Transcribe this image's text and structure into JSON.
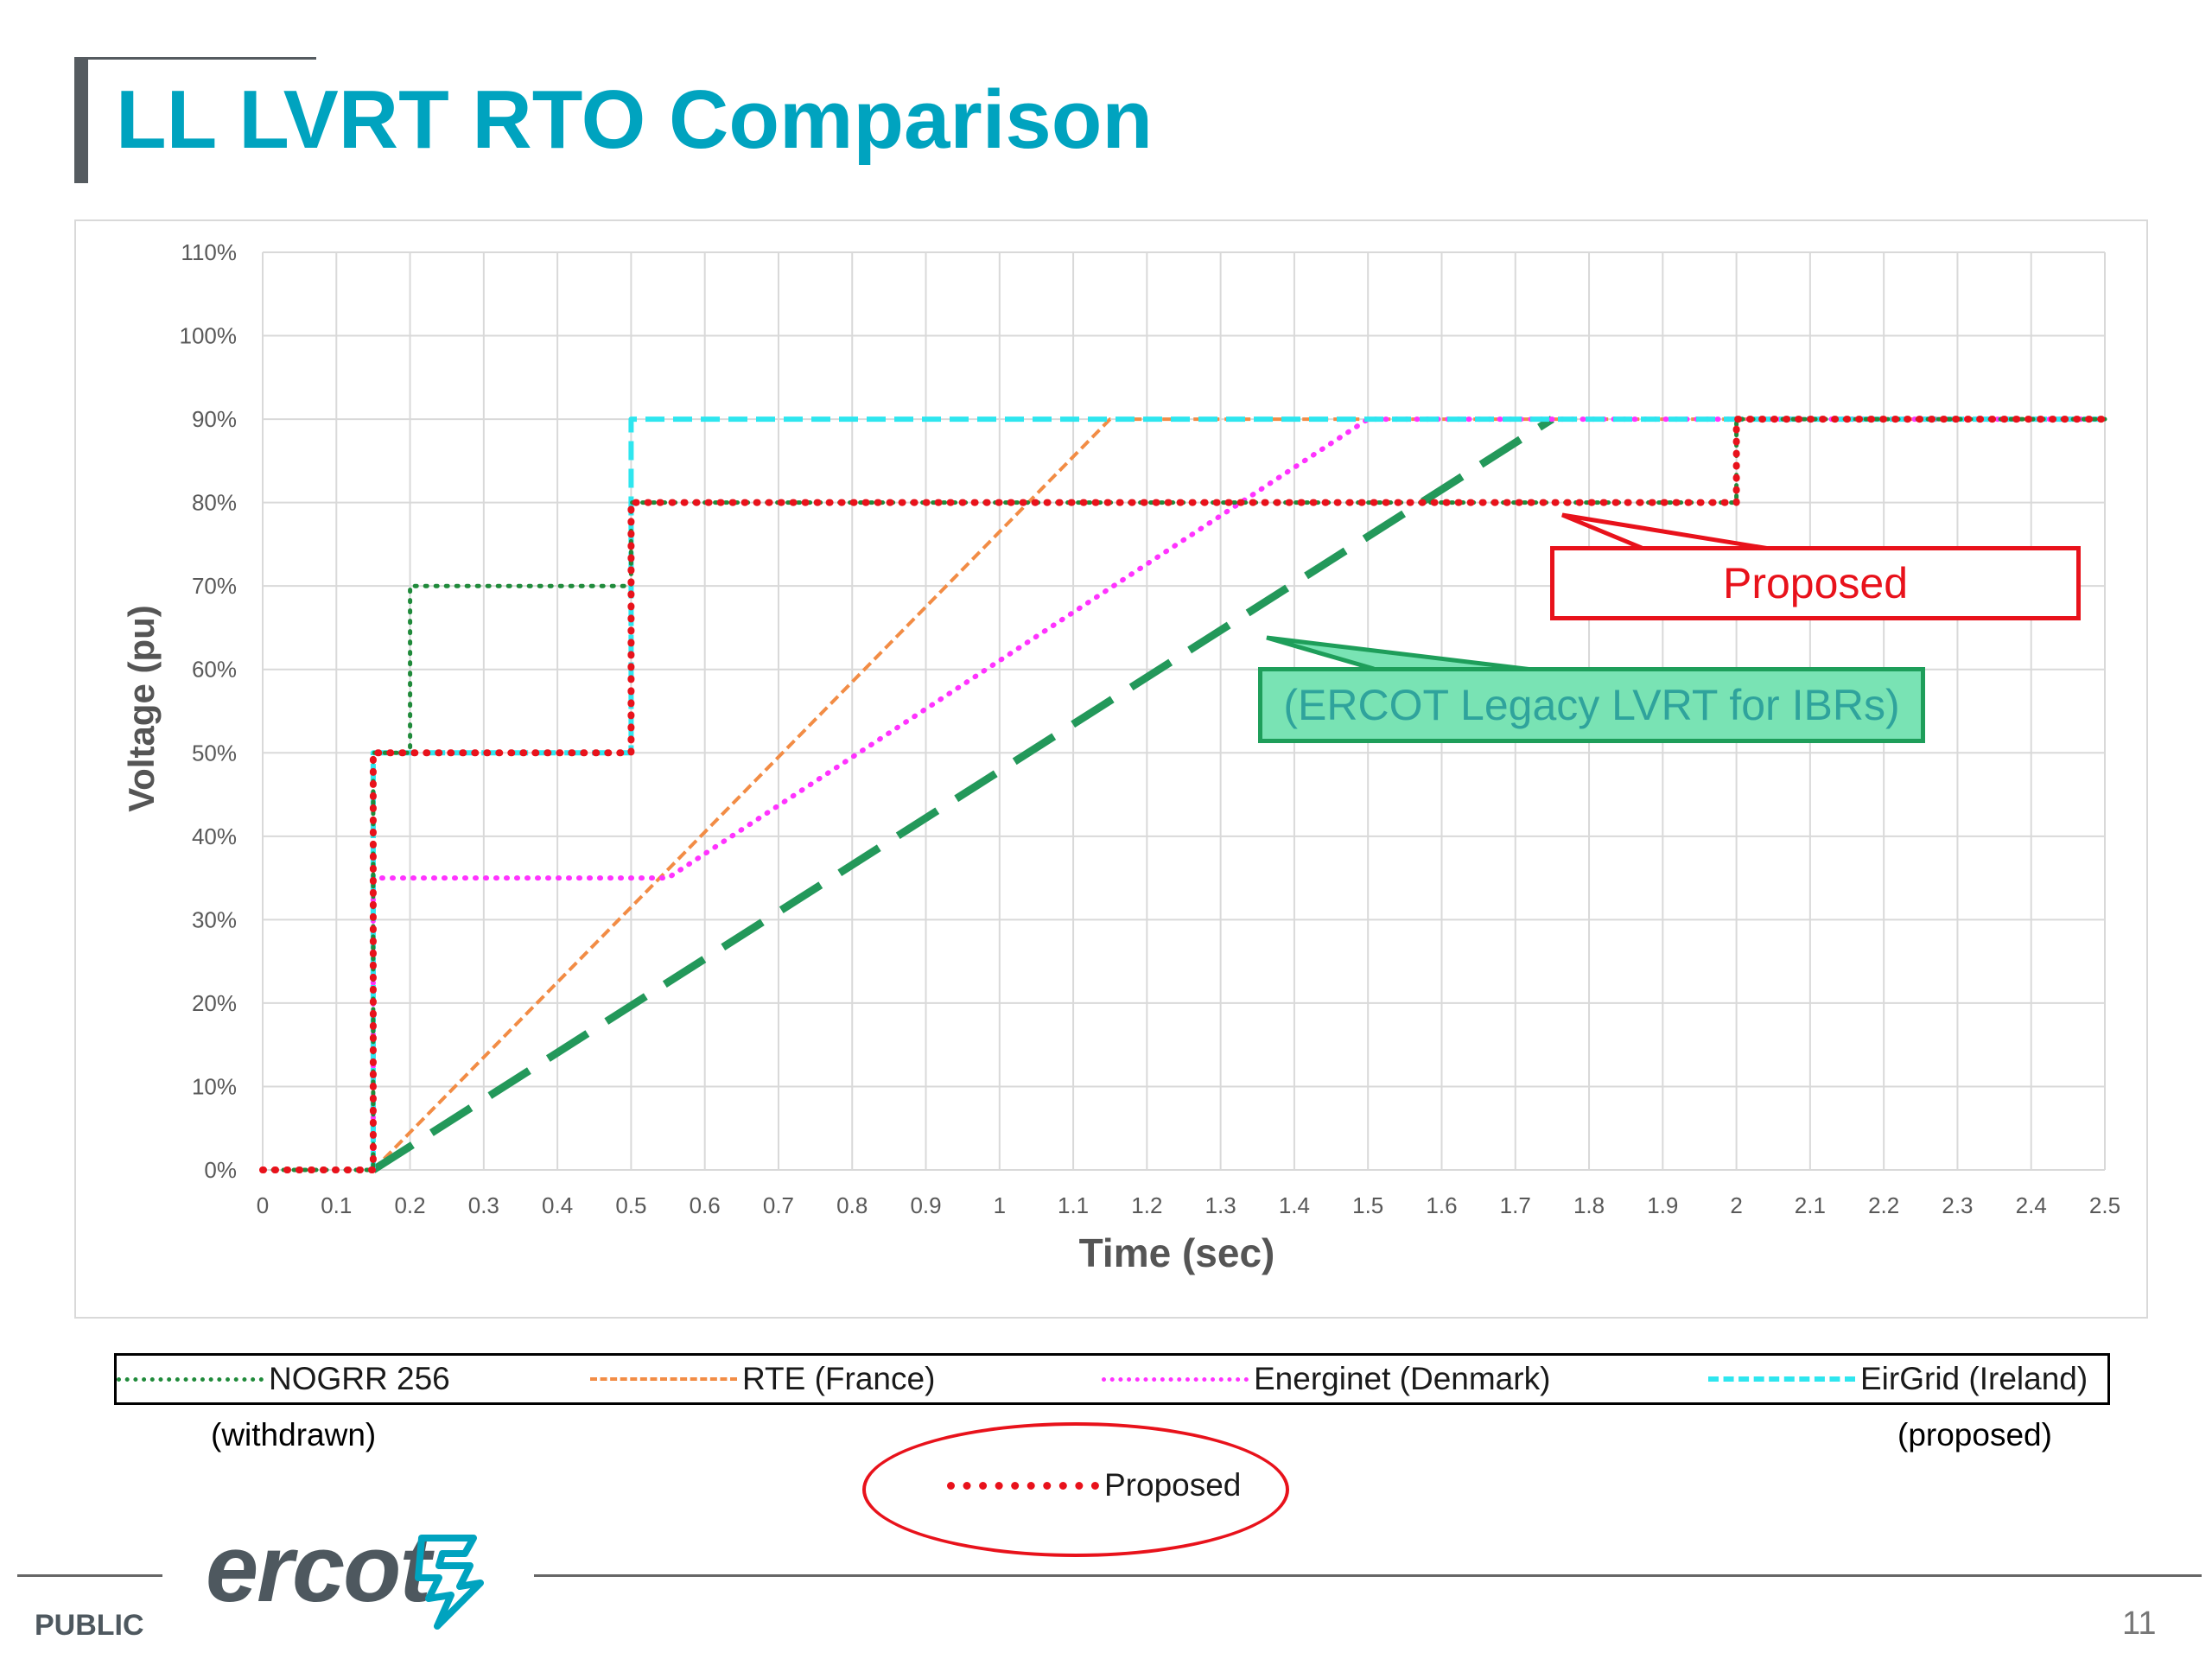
{
  "slide": {
    "title": "LL LVRT RTO Comparison",
    "footer_label": "PUBLIC",
    "page_number": "11",
    "logo_text": "ercot"
  },
  "annotations": {
    "proposed": "Proposed",
    "legacy": "(ERCOT Legacy LVRT for IBRs)"
  },
  "legend": {
    "nogrr": "NOGRR 256",
    "rte": "RTE (France)",
    "energinet": "Energinet (Denmark)",
    "eirgrid": "EirGrid (Ireland)",
    "withdrawn_note": "(withdrawn)",
    "proposed_note": "(proposed)",
    "proposed": "Proposed"
  },
  "colors": {
    "nogrr": "#1f8a3a",
    "rte": "#f28c45",
    "energinet": "#ff33ff",
    "eirgrid": "#2ee6ef",
    "proposed": "#e8121b",
    "legacy": "#23985a"
  },
  "chart_data": {
    "type": "line",
    "xlabel": "Time (sec)",
    "ylabel": "Voltage (pu)",
    "xlim": [
      0,
      2.5
    ],
    "ylim": [
      0,
      1.1
    ],
    "x_ticks": [
      "0",
      "0.1",
      "0.2",
      "0.3",
      "0.4",
      "0.5",
      "0.6",
      "0.7",
      "0.8",
      "0.9",
      "1",
      "1.1",
      "1.2",
      "1.3",
      "1.4",
      "1.5",
      "1.6",
      "1.7",
      "1.8",
      "1.9",
      "2",
      "2.1",
      "2.2",
      "2.3",
      "2.4",
      "2.5"
    ],
    "y_ticks": [
      "0%",
      "10%",
      "20%",
      "30%",
      "40%",
      "50%",
      "60%",
      "70%",
      "80%",
      "90%",
      "100%",
      "110%"
    ],
    "grid": true,
    "series": [
      {
        "name": "NOGRR 256",
        "style": "dotted",
        "points": [
          [
            0,
            0
          ],
          [
            0.15,
            0
          ],
          [
            0.15,
            0.5
          ],
          [
            0.2,
            0.5
          ],
          [
            0.2,
            0.7
          ],
          [
            0.5,
            0.7
          ],
          [
            0.5,
            0.8
          ],
          [
            2,
            0.8
          ],
          [
            2,
            0.9
          ],
          [
            2.5,
            0.9
          ]
        ]
      },
      {
        "name": "RTE (France)",
        "style": "dashed",
        "points": [
          [
            0.15,
            0
          ],
          [
            1.15,
            0.9
          ],
          [
            2.5,
            0.9
          ]
        ]
      },
      {
        "name": "Energinet (Denmark)",
        "style": "dotted",
        "points": [
          [
            0.15,
            0
          ],
          [
            0.15,
            0.35
          ],
          [
            0.55,
            0.35
          ],
          [
            1.5,
            0.9
          ],
          [
            2.5,
            0.9
          ]
        ]
      },
      {
        "name": "EirGrid (Ireland)",
        "style": "dashed",
        "points": [
          [
            0.15,
            0
          ],
          [
            0.15,
            0.5
          ],
          [
            0.5,
            0.5
          ],
          [
            0.5,
            0.9
          ],
          [
            2.5,
            0.9
          ]
        ]
      },
      {
        "name": "ERCOT Legacy LVRT for IBRs",
        "style": "long-dash",
        "points": [
          [
            0.15,
            0
          ],
          [
            1.75,
            0.9
          ]
        ]
      },
      {
        "name": "Proposed",
        "style": "dotted-bold",
        "points": [
          [
            0,
            0
          ],
          [
            0.15,
            0
          ],
          [
            0.15,
            0.5
          ],
          [
            0.5,
            0.5
          ],
          [
            0.5,
            0.8
          ],
          [
            2,
            0.8
          ],
          [
            2,
            0.9
          ],
          [
            2.5,
            0.9
          ]
        ]
      }
    ]
  }
}
